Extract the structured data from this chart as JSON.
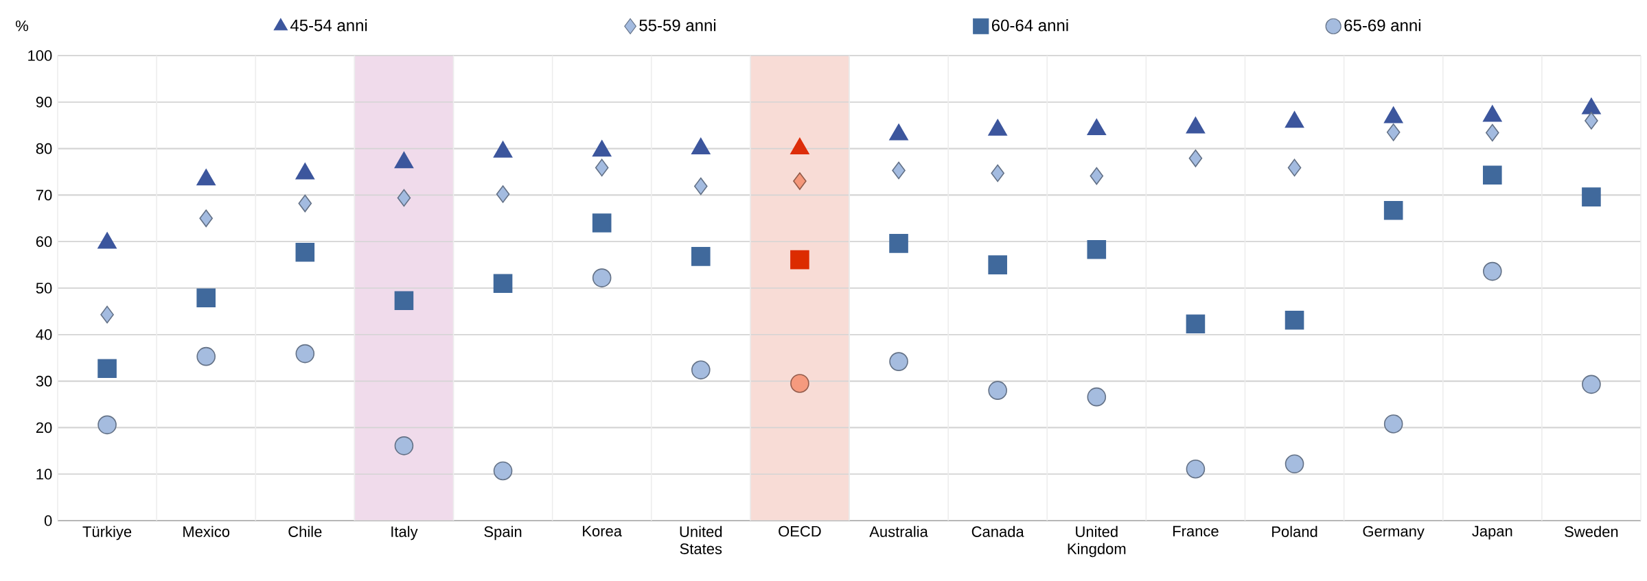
{
  "chart_data": {
    "type": "scatter",
    "ylabel": "%",
    "categories": [
      "Türkiye",
      "Mexico",
      "Chile",
      "Italy",
      "Spain",
      "Korea",
      "United States",
      "OECD",
      "Australia",
      "Canada",
      "United Kingdom",
      "France",
      "Poland",
      "Germany",
      "Japan",
      "Sweden"
    ],
    "series": [
      {
        "name": "45-54 anni",
        "marker": "triangle",
        "color": "#3c569d",
        "colors": [
          "#3c569d",
          "#3c569d",
          "#3c569d",
          "#3c569d",
          "#3c569d",
          "#3c569d",
          "#3c569d",
          "#dd2d0a",
          "#3c569d",
          "#3c569d",
          "#3c569d",
          "#3c569d",
          "#3c569d",
          "#3c569d",
          "#3c569d",
          "#3c569d"
        ],
        "values": [
          59.7,
          73.3,
          74.6,
          77.0,
          79.3,
          79.5,
          80.0,
          80.0,
          83.0,
          84.0,
          84.1,
          84.5,
          85.7,
          86.7,
          87.0,
          88.6
        ]
      },
      {
        "name": "55-59 anni",
        "marker": "diamond",
        "color": "#a3bbe0",
        "colors": [
          "#a3bbe0",
          "#a3bbe0",
          "#a3bbe0",
          "#a3bbe0",
          "#a3bbe0",
          "#a3bbe0",
          "#a3bbe0",
          "#f4977a",
          "#a3bbe0",
          "#a3bbe0",
          "#a3bbe0",
          "#a3bbe0",
          "#a3bbe0",
          "#a3bbe0",
          "#a3bbe0",
          "#a3bbe0"
        ],
        "values": [
          44.3,
          65.0,
          68.2,
          69.4,
          70.2,
          75.9,
          71.9,
          73.0,
          75.3,
          74.7,
          74.1,
          77.9,
          75.9,
          83.5,
          83.4,
          86.0
        ]
      },
      {
        "name": "60-64 anni",
        "marker": "square",
        "color": "#40699c",
        "colors": [
          "#40699c",
          "#40699c",
          "#40699c",
          "#40699c",
          "#40699c",
          "#40699c",
          "#40699c",
          "#dc2c00",
          "#40699c",
          "#40699c",
          "#40699c",
          "#40699c",
          "#40699c",
          "#40699c",
          "#40699c",
          "#40699c"
        ],
        "values": [
          32.7,
          47.9,
          57.7,
          47.3,
          51.0,
          64.0,
          56.8,
          56.1,
          59.6,
          55.0,
          58.3,
          42.3,
          43.1,
          66.7,
          74.3,
          69.6
        ]
      },
      {
        "name": "65-69 anni",
        "marker": "circle",
        "color": "#a5bcdf",
        "colors": [
          "#a5bcdf",
          "#a5bcdf",
          "#a5bcdf",
          "#a5bcdf",
          "#a5bcdf",
          "#a5bcdf",
          "#a5bcdf",
          "#f59a7e",
          "#a5bcdf",
          "#a5bcdf",
          "#a5bcdf",
          "#a5bcdf",
          "#a5bcdf",
          "#a5bcdf",
          "#a5bcdf",
          "#a5bcdf"
        ],
        "values": [
          20.6,
          35.3,
          35.9,
          16.1,
          10.7,
          52.2,
          32.4,
          29.5,
          34.2,
          28.0,
          26.6,
          11.1,
          12.2,
          20.8,
          53.6,
          29.3
        ]
      }
    ],
    "bands": [
      {
        "axis": "x",
        "from": "Italy",
        "to": "Italy",
        "color": "#f0dbeb"
      },
      {
        "axis": "x",
        "from": "OECD",
        "to": "OECD",
        "color": "#f8dcd6"
      }
    ],
    "ylim": [
      0,
      100
    ],
    "yticks": [
      0,
      10,
      20,
      30,
      40,
      50,
      60,
      70,
      80,
      90,
      100
    ],
    "grid": true,
    "legend": "top"
  }
}
